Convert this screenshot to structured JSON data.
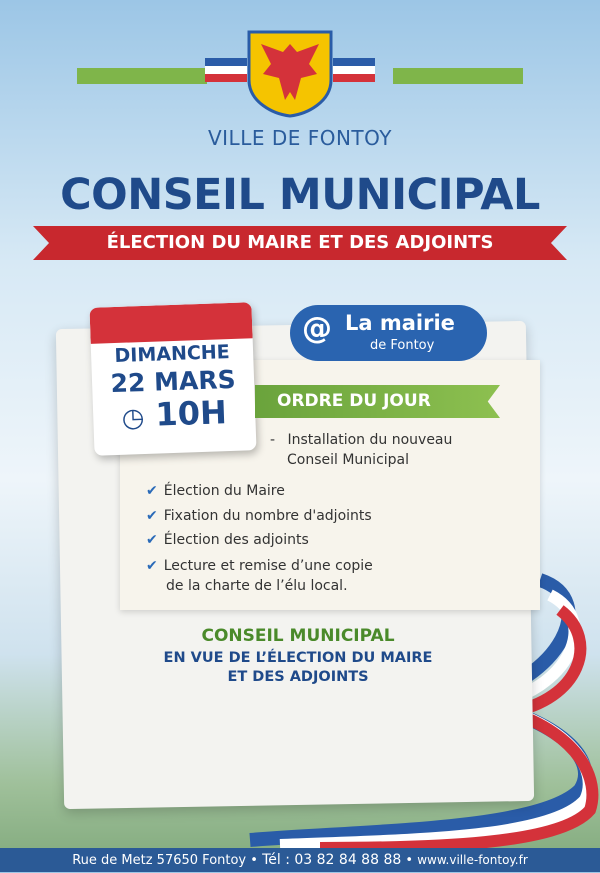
{
  "header": {
    "city": "VILLE DE FONTOY",
    "title": "CONSEIL MUNICIPAL",
    "banner": "ÉLECTION DU MAIRE ET DES ADJOINTS"
  },
  "calendar": {
    "day": "DIMANCHE",
    "date": "22 MARS",
    "time": "10H"
  },
  "location": {
    "icon": "at-pin-icon",
    "line1": "La mairie",
    "line2": "de Fontoy"
  },
  "agenda": {
    "title": "ORDRE DU JOUR",
    "intro": [
      "Installation du nouveau",
      "Conseil Municipal"
    ],
    "items": [
      "Élection du Maire",
      "Fixation du nombre d'adjoints",
      "Élection des adjoints",
      "Lecture et remise d’une copie"
    ],
    "item_cont": "de la charte de l’élu local."
  },
  "closing": {
    "line1": "CONSEIL MUNICIPAL",
    "line2": "EN VUE DE L’ÉLECTION DU MAIRE",
    "line3": "ET DES ADJOINTS"
  },
  "footer": {
    "address": "Rue de Metz 57650 Fontoy",
    "phone": "Tél : 03 82 84 88 88",
    "website": "www.ville-fontoy.fr",
    "sep": "•"
  },
  "colors": {
    "blue": "#1f4a8a",
    "red": "#c8282e",
    "green": "#4a8a2a"
  }
}
